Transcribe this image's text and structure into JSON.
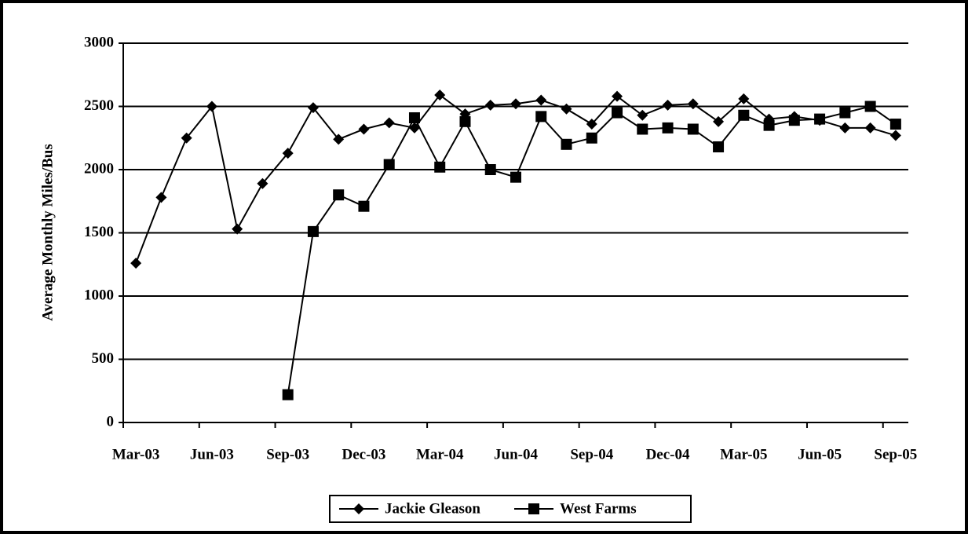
{
  "chart_data": {
    "type": "line",
    "y_label": "Average Monthly Miles/Bus",
    "categories": [
      "Mar-03",
      null,
      null,
      "Jun-03",
      null,
      null,
      "Sep-03",
      null,
      null,
      "Dec-03",
      null,
      null,
      "Mar-04",
      null,
      null,
      "Jun-04",
      null,
      null,
      "Sep-04",
      null,
      null,
      "Dec-04",
      null,
      null,
      "Mar-05",
      null,
      null,
      "Jun-05",
      null,
      null,
      "Sep-05"
    ],
    "series": [
      {
        "name": "Jackie Gleason",
        "color": "#000000",
        "marker": "diamond",
        "values": [
          1260,
          1780,
          2250,
          2500,
          1530,
          1890,
          2130,
          2490,
          2240,
          2320,
          2370,
          2330,
          2590,
          2440,
          2510,
          2520,
          2550,
          2480,
          2360,
          2580,
          2430,
          2510,
          2520,
          2380,
          2560,
          2400,
          2420,
          2390,
          2330,
          2330,
          2270
        ]
      },
      {
        "name": "West Farms",
        "color": "#000000",
        "marker": "square",
        "values": [
          null,
          null,
          null,
          null,
          null,
          null,
          220,
          1510,
          1800,
          1710,
          2040,
          2410,
          2020,
          2380,
          2000,
          1940,
          2420,
          2200,
          2250,
          2450,
          2320,
          2330,
          2320,
          2180,
          2430,
          2350,
          2390,
          2400,
          2450,
          2500,
          2360
        ]
      }
    ],
    "ylim": [
      0,
      3000
    ],
    "yticks": [
      0,
      500,
      1000,
      1500,
      2000,
      2500,
      3000
    ],
    "grid": true,
    "legend": "bottom"
  }
}
